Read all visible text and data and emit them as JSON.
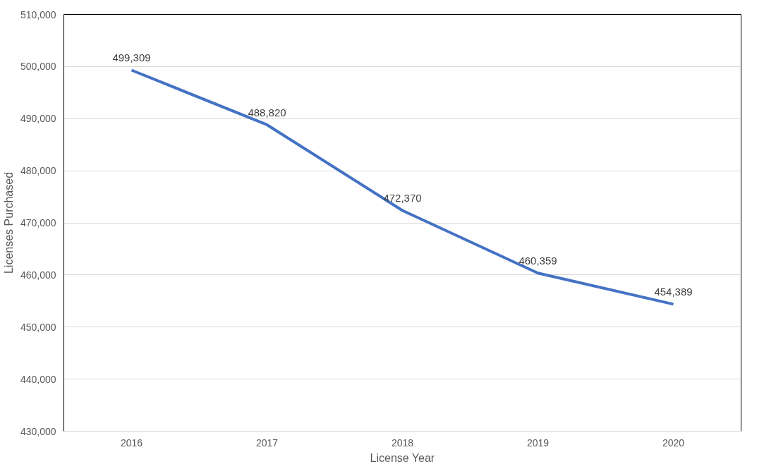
{
  "chart_data": {
    "type": "line",
    "xlabel": "License Year",
    "ylabel": "Licenses Purchased",
    "categories": [
      "2016",
      "2017",
      "2018",
      "2019",
      "2020"
    ],
    "series": [
      {
        "color": "#4472c4",
        "values": [
          499309,
          488820,
          472370,
          460359,
          454389
        ],
        "value_labels": [
          "499,309",
          "488,820",
          "472,370",
          "460,359",
          "454,389"
        ]
      }
    ],
    "ylim": [
      430000,
      510000
    ],
    "yticks": [
      {
        "value": 430000,
        "label": "430,000"
      },
      {
        "value": 440000,
        "label": "440,000"
      },
      {
        "value": 450000,
        "label": "450,000"
      },
      {
        "value": 460000,
        "label": "460,000"
      },
      {
        "value": 470000,
        "label": "470,000"
      },
      {
        "value": 480000,
        "label": "480,000"
      },
      {
        "value": 490000,
        "label": "490,000"
      },
      {
        "value": 500000,
        "label": "500,000"
      },
      {
        "value": 510000,
        "label": "510,000"
      }
    ],
    "grid": "y",
    "marker": "none",
    "line_style": "solid"
  }
}
